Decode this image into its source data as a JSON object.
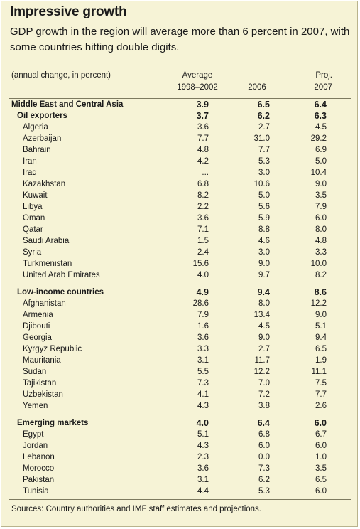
{
  "title": "Impressive growth",
  "subtitle": "GDP growth in the region will average more than 6 percent in 2007, with some countries hitting double digits.",
  "header": {
    "unit_label": "(annual change, in percent)",
    "col1_line1": "Average",
    "col1_line2": "1998–2002",
    "col2_line1": "",
    "col2_line2": "2006",
    "col3_line1": "Proj.",
    "col3_line2": "2007"
  },
  "rows": [
    {
      "name": "Middle East and Central Asia",
      "level": 0,
      "bold": true,
      "v1": "3.9",
      "v2": "6.5",
      "v3": "6.4"
    },
    {
      "name": "Oil exporters",
      "level": 1,
      "bold": true,
      "v1": "3.7",
      "v2": "6.2",
      "v3": "6.3"
    },
    {
      "name": "Algeria",
      "level": 2,
      "bold": false,
      "v1": "3.6",
      "v2": "2.7",
      "v3": "4.5"
    },
    {
      "name": "Azerbaijan",
      "level": 2,
      "bold": false,
      "v1": "7.7",
      "v2": "31.0",
      "v3": "29.2"
    },
    {
      "name": "Bahrain",
      "level": 2,
      "bold": false,
      "v1": "4.8",
      "v2": "7.7",
      "v3": "6.9"
    },
    {
      "name": "Iran",
      "level": 2,
      "bold": false,
      "v1": "4.2",
      "v2": "5.3",
      "v3": "5.0"
    },
    {
      "name": "Iraq",
      "level": 2,
      "bold": false,
      "v1": "...",
      "v2": "3.0",
      "v3": "10.4"
    },
    {
      "name": "Kazakhstan",
      "level": 2,
      "bold": false,
      "v1": "6.8",
      "v2": "10.6",
      "v3": "9.0"
    },
    {
      "name": "Kuwait",
      "level": 2,
      "bold": false,
      "v1": "8.2",
      "v2": "5.0",
      "v3": "3.5"
    },
    {
      "name": "Libya",
      "level": 2,
      "bold": false,
      "v1": "2.2",
      "v2": "5.6",
      "v3": "7.9"
    },
    {
      "name": "Oman",
      "level": 2,
      "bold": false,
      "v1": "3.6",
      "v2": "5.9",
      "v3": "6.0"
    },
    {
      "name": "Qatar",
      "level": 2,
      "bold": false,
      "v1": "7.1",
      "v2": "8.8",
      "v3": "8.0"
    },
    {
      "name": "Saudi Arabia",
      "level": 2,
      "bold": false,
      "v1": "1.5",
      "v2": "4.6",
      "v3": "4.8"
    },
    {
      "name": "Syria",
      "level": 2,
      "bold": false,
      "v1": "2.4",
      "v2": "3.0",
      "v3": "3.3"
    },
    {
      "name": "Turkmenistan",
      "level": 2,
      "bold": false,
      "v1": "15.6",
      "v2": "9.0",
      "v3": "10.0"
    },
    {
      "name": "United Arab Emirates",
      "level": 2,
      "bold": false,
      "v1": "4.0",
      "v2": "9.7",
      "v3": "8.2"
    },
    {
      "gap": true
    },
    {
      "name": "Low-income countries",
      "level": 1,
      "bold": true,
      "v1": "4.9",
      "v2": "9.4",
      "v3": "8.6"
    },
    {
      "name": "Afghanistan",
      "level": 2,
      "bold": false,
      "v1": "28.6",
      "v2": "8.0",
      "v3": "12.2"
    },
    {
      "name": "Armenia",
      "level": 2,
      "bold": false,
      "v1": "7.9",
      "v2": "13.4",
      "v3": "9.0"
    },
    {
      "name": "Djibouti",
      "level": 2,
      "bold": false,
      "v1": "1.6",
      "v2": "4.5",
      "v3": "5.1"
    },
    {
      "name": "Georgia",
      "level": 2,
      "bold": false,
      "v1": "3.6",
      "v2": "9.0",
      "v3": "9.4"
    },
    {
      "name": "Kyrgyz Republic",
      "level": 2,
      "bold": false,
      "v1": "3.3",
      "v2": "2.7",
      "v3": "6.5"
    },
    {
      "name": "Mauritania",
      "level": 2,
      "bold": false,
      "v1": "3.1",
      "v2": "11.7",
      "v3": "1.9"
    },
    {
      "name": "Sudan",
      "level": 2,
      "bold": false,
      "v1": "5.5",
      "v2": "12.2",
      "v3": "11.1"
    },
    {
      "name": "Tajikistan",
      "level": 2,
      "bold": false,
      "v1": "7.3",
      "v2": "7.0",
      "v3": "7.5"
    },
    {
      "name": "Uzbekistan",
      "level": 2,
      "bold": false,
      "v1": "4.1",
      "v2": "7.2",
      "v3": "7.7"
    },
    {
      "name": "Yemen",
      "level": 2,
      "bold": false,
      "v1": "4.3",
      "v2": "3.8",
      "v3": "2.6"
    },
    {
      "gap": true
    },
    {
      "name": "Emerging markets",
      "level": 1,
      "bold": true,
      "v1": "4.0",
      "v2": "6.4",
      "v3": "6.0"
    },
    {
      "name": "Egypt",
      "level": 2,
      "bold": false,
      "v1": "5.1",
      "v2": "6.8",
      "v3": "6.7"
    },
    {
      "name": "Jordan",
      "level": 2,
      "bold": false,
      "v1": "4.3",
      "v2": "6.0",
      "v3": "6.0"
    },
    {
      "name": "Lebanon",
      "level": 2,
      "bold": false,
      "v1": "2.3",
      "v2": "0.0",
      "v3": "1.0"
    },
    {
      "name": "Morocco",
      "level": 2,
      "bold": false,
      "v1": "3.6",
      "v2": "7.3",
      "v3": "3.5"
    },
    {
      "name": "Pakistan",
      "level": 2,
      "bold": false,
      "v1": "3.1",
      "v2": "6.2",
      "v3": "6.5"
    },
    {
      "name": "Tunisia",
      "level": 2,
      "bold": false,
      "v1": "4.4",
      "v2": "5.3",
      "v3": "6.0"
    }
  ],
  "source": "Sources: Country authorities and IMF staff estimates and projections.",
  "colors": {
    "panel_background": "#f6f3d6",
    "border": "#b9b38c"
  }
}
